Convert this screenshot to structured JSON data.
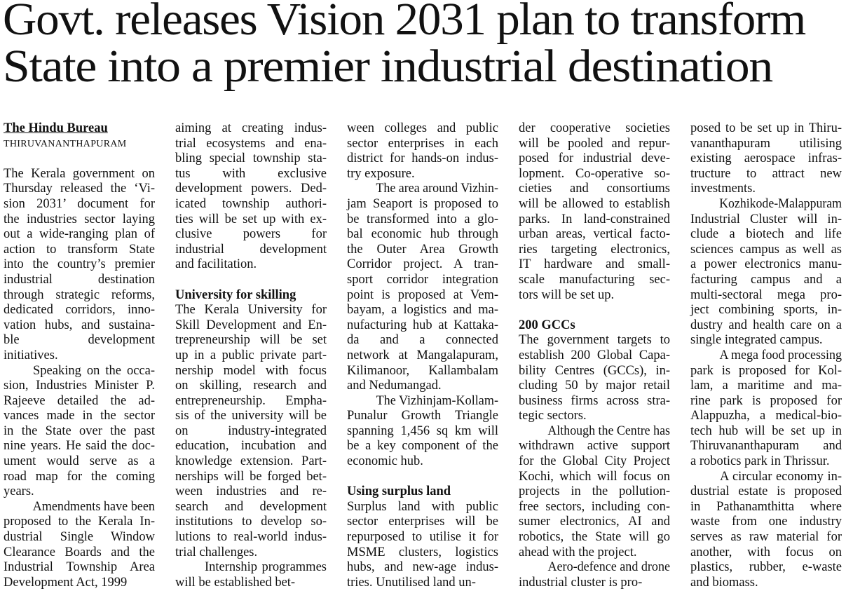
{
  "headline": [
    "Govt. releases Vision 2031 plan to transform",
    "State into a premier industrial destination"
  ],
  "byline": {
    "author": "The Hindu Bureau",
    "dateline": "THIRUVANANTHAPURAM"
  },
  "columns": [
    [
      {
        "indent": false,
        "lines": [
          "The Kerala government on",
          "Thursday released the ‘Vi-",
          "sion 2031’ document for",
          "the industries sector laying",
          "out a wide-ranging plan of",
          "action to transform State",
          "into the country’s premier",
          "industrial destination",
          "through strategic reforms,",
          "dedicated corridors, inno-",
          "vation hubs, and sustaina-",
          "ble development",
          "initiatives."
        ]
      },
      {
        "indent": true,
        "lines": [
          "Speaking on the occa-",
          "sion, Industries Minister P.",
          "Rajeeve detailed the ad-",
          "vances made in the sector",
          "in the State over the past",
          "nine years. He said the doc-",
          "ument would serve as a",
          "road map for the coming",
          "years."
        ]
      },
      {
        "indent": true,
        "lines": [
          "Amendments have been",
          "proposed to the Kerala In-",
          "dustrial Single Window",
          "Clearance Boards and the",
          "Industrial Township Area",
          "Development Act, 1999"
        ]
      }
    ],
    [
      {
        "indent": false,
        "lines": [
          "aiming at creating indus-",
          "trial ecosystems and ena-",
          "bling special township sta-",
          "tus with exclusive",
          "development powers. Ded-",
          "icated township authori-",
          "ties will be set up with ex-",
          "clusive powers for",
          "industrial development",
          "and facilitation."
        ]
      },
      {
        "heading": "University for skilling"
      },
      {
        "indent": false,
        "lines": [
          "The Kerala University for",
          "Skill Development and En-",
          "trepreneurship will be set",
          "up in a public private part-",
          "nership model with focus",
          "on skilling, research and",
          "entrepreneurship. Empha-",
          "sis of the university will be",
          "on industry-integrated",
          "education, incubation and",
          "knowledge extension. Part-",
          "nerships will be forged bet-",
          "ween industries and re-",
          "search and development",
          "institutions to develop so-",
          "lutions to real-world indus-",
          "trial challenges."
        ]
      },
      {
        "indent": true,
        "lines": [
          "Internship programmes",
          "will be established bet-"
        ]
      }
    ],
    [
      {
        "indent": false,
        "lines": [
          "ween colleges and public",
          "sector enterprises in each",
          "district for hands-on indus-",
          "try exposure."
        ]
      },
      {
        "indent": true,
        "lines": [
          "The area around Vizhin-",
          "jam Seaport is proposed to",
          "be transformed into a glo-",
          "bal economic hub through",
          "the Outer Area Growth",
          "Corridor project. A tran-",
          "sport corridor integration",
          "point is proposed at Vem-",
          "bayam, a logistics and ma-",
          "nufacturing hub at Kattaka-",
          "da and a connected",
          "network at Mangalapuram,",
          "Kilimanoor, Kallambalam",
          "and Nedumangad."
        ]
      },
      {
        "indent": true,
        "lines": [
          "The Vizhinjam-Kollam-",
          "Punalur Growth Triangle",
          "spanning 1,456 sq km will",
          "be a key component of the",
          "economic hub."
        ]
      },
      {
        "heading": "Using surplus land"
      },
      {
        "indent": false,
        "lines": [
          "Surplus land with public",
          "sector enterprises will be",
          "repurposed to utilise it for",
          "MSME clusters, logistics",
          "hubs, and new-age indus-",
          "tries. Unutilised land un-"
        ]
      }
    ],
    [
      {
        "indent": false,
        "lines": [
          "der cooperative societies",
          "will be pooled and repur-",
          "posed for industrial deve-",
          "lopment. Co-operative so-",
          "cieties and consortiums",
          "will be allowed to establish",
          "parks. In land-constrained",
          "urban areas, vertical facto-",
          "ries targeting electronics,",
          "IT hardware and small-",
          "scale manufacturing sec-",
          "tors will be set up."
        ]
      },
      {
        "heading": "200 GCCs"
      },
      {
        "indent": false,
        "lines": [
          "The government targets to",
          "establish 200 Global Capa-",
          "bility Centres (GCCs), in-",
          "cluding 50 by major retail",
          "business firms across stra-",
          "tegic sectors."
        ]
      },
      {
        "indent": true,
        "lines": [
          "Although the Centre has",
          "withdrawn active support",
          "for the Global City Project",
          "Kochi, which will focus on",
          "projects in the pollution-",
          "free sectors, including con-",
          "sumer electronics, AI and",
          "robotics, the State will go",
          "ahead with the project."
        ]
      },
      {
        "indent": true,
        "lines": [
          "Aero-defence and drone",
          "industrial cluster is pro-"
        ]
      }
    ],
    [
      {
        "indent": false,
        "lines": [
          "posed to be set up in Thiru-",
          "vananthapuram utilising",
          "existing aerospace infras-",
          "tructure to attract new",
          "investments."
        ]
      },
      {
        "indent": true,
        "lines": [
          "Kozhikode-Malappuram",
          "Industrial Cluster will in-",
          "clude a biotech and life",
          "sciences campus as well as",
          "a power electronics manu-",
          "facturing campus and a",
          "multi-sectoral mega pro-",
          "ject combining sports, in-",
          "dustry and health care on a",
          "single integrated campus."
        ]
      },
      {
        "indent": true,
        "lines": [
          "A mega food processing",
          "park is proposed for Kol-",
          "lam, a maritime and ma-",
          "rine park is proposed for",
          "Alappuzha, a medical-bio-",
          "tech hub will be set up in",
          "Thiruvananthapuram and",
          "a robotics park in Thrissur."
        ]
      },
      {
        "indent": true,
        "lines": [
          "A circular economy in-",
          "dustrial estate is proposed",
          "in Pathanamthitta where",
          "waste from one industry",
          "serves as raw material for",
          "another, with focus on",
          "plastics, rubber, e-waste",
          "and biomass."
        ]
      }
    ]
  ]
}
